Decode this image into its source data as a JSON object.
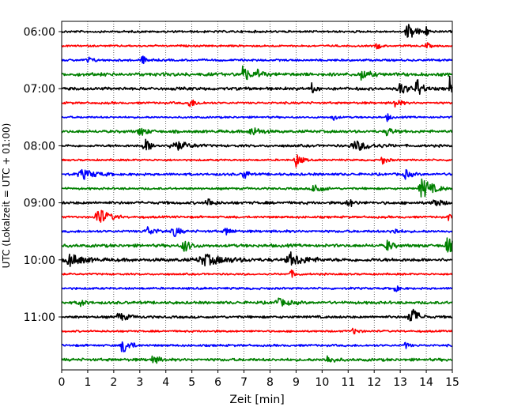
{
  "chart_data": {
    "type": "line",
    "title": "",
    "xlabel": "Zeit  [min]",
    "ylabel": "UTC (Lokalzeit = UTC + 01:00)",
    "xlim": [
      0,
      15
    ],
    "x_ticks": [
      "0",
      "1",
      "2",
      "3",
      "4",
      "5",
      "6",
      "7",
      "8",
      "9",
      "10",
      "11",
      "12",
      "13",
      "14",
      "15"
    ],
    "y_ticks": [
      "06:00",
      "07:00",
      "08:00",
      "09:00",
      "10:00",
      "11:00"
    ],
    "grid": "vertical dotted lines at each minute",
    "trace_interval_min": 15,
    "trace_colors": [
      "#000000",
      "#ff0000",
      "#0000ff",
      "#008000"
    ],
    "traces": [
      {
        "start": "06:00",
        "color": "#000000",
        "noise": 0.35,
        "events": [
          {
            "t": 13.3,
            "amp": 3.2,
            "dur": 0.5
          },
          {
            "t": 14.0,
            "amp": 1.5,
            "dur": 0.2
          }
        ]
      },
      {
        "start": "06:15",
        "color": "#ff0000",
        "noise": 0.3,
        "events": [
          {
            "t": 12.1,
            "amp": 1.4,
            "dur": 0.2
          },
          {
            "t": 14.0,
            "amp": 1.3,
            "dur": 0.2
          }
        ]
      },
      {
        "start": "06:30",
        "color": "#0000ff",
        "noise": 0.35,
        "events": [
          {
            "t": 1.0,
            "amp": 1.2,
            "dur": 0.3
          },
          {
            "t": 3.1,
            "amp": 1.5,
            "dur": 0.3
          }
        ]
      },
      {
        "start": "06:45",
        "color": "#008000",
        "noise": 0.55,
        "events": [
          {
            "t": 6.95,
            "amp": 4.0,
            "dur": 0.3
          },
          {
            "t": 7.5,
            "amp": 1.8,
            "dur": 0.3
          },
          {
            "t": 11.5,
            "amp": 2.0,
            "dur": 0.4
          }
        ]
      },
      {
        "start": "07:00",
        "color": "#000000",
        "noise": 0.5,
        "events": [
          {
            "t": 9.6,
            "amp": 2.0,
            "dur": 0.2
          },
          {
            "t": 13.0,
            "amp": 2.5,
            "dur": 0.4
          },
          {
            "t": 13.65,
            "amp": 4.2,
            "dur": 0.3
          },
          {
            "t": 14.9,
            "amp": 4.5,
            "dur": 0.1
          }
        ]
      },
      {
        "start": "07:15",
        "color": "#ff0000",
        "noise": 0.35,
        "events": [
          {
            "t": 4.9,
            "amp": 1.6,
            "dur": 0.4
          },
          {
            "t": 12.8,
            "amp": 1.8,
            "dur": 0.3
          }
        ]
      },
      {
        "start": "07:30",
        "color": "#0000ff",
        "noise": 0.3,
        "events": [
          {
            "t": 10.4,
            "amp": 1.6,
            "dur": 0.2
          },
          {
            "t": 12.5,
            "amp": 1.5,
            "dur": 0.2
          }
        ]
      },
      {
        "start": "07:45",
        "color": "#008000",
        "noise": 0.45,
        "events": [
          {
            "t": 3.0,
            "amp": 1.6,
            "dur": 0.4
          },
          {
            "t": 7.3,
            "amp": 1.8,
            "dur": 0.5
          },
          {
            "t": 12.5,
            "amp": 1.8,
            "dur": 0.3
          }
        ]
      },
      {
        "start": "08:00",
        "color": "#000000",
        "noise": 0.4,
        "events": [
          {
            "t": 3.2,
            "amp": 2.6,
            "dur": 0.4
          },
          {
            "t": 4.3,
            "amp": 2.0,
            "dur": 0.8
          },
          {
            "t": 11.3,
            "amp": 1.8,
            "dur": 1.0
          }
        ]
      },
      {
        "start": "08:15",
        "color": "#ff0000",
        "noise": 0.3,
        "events": [
          {
            "t": 9.0,
            "amp": 2.8,
            "dur": 0.3
          },
          {
            "t": 12.3,
            "amp": 1.6,
            "dur": 0.3
          }
        ]
      },
      {
        "start": "08:30",
        "color": "#0000ff",
        "noise": 0.4,
        "events": [
          {
            "t": 0.8,
            "amp": 1.8,
            "dur": 0.8
          },
          {
            "t": 7.0,
            "amp": 2.8,
            "dur": 0.2
          },
          {
            "t": 13.2,
            "amp": 1.8,
            "dur": 0.3
          }
        ]
      },
      {
        "start": "08:45",
        "color": "#008000",
        "noise": 0.35,
        "events": [
          {
            "t": 9.7,
            "amp": 2.4,
            "dur": 0.4
          },
          {
            "t": 13.85,
            "amp": 4.2,
            "dur": 0.6
          }
        ]
      },
      {
        "start": "09:00",
        "color": "#000000",
        "noise": 0.45,
        "events": [
          {
            "t": 5.6,
            "amp": 2.0,
            "dur": 0.3
          },
          {
            "t": 11.0,
            "amp": 1.8,
            "dur": 0.3
          },
          {
            "t": 14.3,
            "amp": 1.8,
            "dur": 0.4
          }
        ]
      },
      {
        "start": "09:15",
        "color": "#ff0000",
        "noise": 0.35,
        "events": [
          {
            "t": 1.4,
            "amp": 3.6,
            "dur": 0.6
          },
          {
            "t": 14.85,
            "amp": 1.5,
            "dur": 0.1
          }
        ]
      },
      {
        "start": "09:30",
        "color": "#0000ff",
        "noise": 0.4,
        "events": [
          {
            "t": 3.3,
            "amp": 1.6,
            "dur": 0.5
          },
          {
            "t": 4.3,
            "amp": 2.6,
            "dur": 0.3
          },
          {
            "t": 6.3,
            "amp": 1.6,
            "dur": 0.3
          },
          {
            "t": 12.7,
            "amp": 1.6,
            "dur": 0.3
          }
        ]
      },
      {
        "start": "09:45",
        "color": "#008000",
        "noise": 0.5,
        "events": [
          {
            "t": 4.7,
            "amp": 2.4,
            "dur": 0.4
          },
          {
            "t": 12.5,
            "amp": 2.2,
            "dur": 0.3
          },
          {
            "t": 14.8,
            "amp": 3.2,
            "dur": 0.4
          }
        ]
      },
      {
        "start": "10:00",
        "color": "#000000",
        "noise": 0.55,
        "events": [
          {
            "t": 0.3,
            "amp": 2.5,
            "dur": 0.7
          },
          {
            "t": 5.5,
            "amp": 2.0,
            "dur": 1.2
          },
          {
            "t": 8.8,
            "amp": 2.4,
            "dur": 0.8
          }
        ]
      },
      {
        "start": "10:15",
        "color": "#ff0000",
        "noise": 0.3,
        "events": [
          {
            "t": 8.8,
            "amp": 1.4,
            "dur": 0.3
          }
        ]
      },
      {
        "start": "10:30",
        "color": "#0000ff",
        "noise": 0.35,
        "events": [
          {
            "t": 12.8,
            "amp": 1.5,
            "dur": 0.2
          }
        ]
      },
      {
        "start": "10:45",
        "color": "#008000",
        "noise": 0.45,
        "events": [
          {
            "t": 0.7,
            "amp": 1.4,
            "dur": 0.3
          },
          {
            "t": 8.3,
            "amp": 1.5,
            "dur": 0.6
          }
        ]
      },
      {
        "start": "11:00",
        "color": "#000000",
        "noise": 0.4,
        "events": [
          {
            "t": 2.2,
            "amp": 1.6,
            "dur": 0.5
          },
          {
            "t": 13.4,
            "amp": 4.4,
            "dur": 0.4
          }
        ]
      },
      {
        "start": "11:15",
        "color": "#ff0000",
        "noise": 0.3,
        "events": [
          {
            "t": 11.2,
            "amp": 1.2,
            "dur": 0.3
          }
        ]
      },
      {
        "start": "11:30",
        "color": "#0000ff",
        "noise": 0.35,
        "events": [
          {
            "t": 2.35,
            "amp": 3.4,
            "dur": 0.4
          },
          {
            "t": 13.2,
            "amp": 1.4,
            "dur": 0.2
          }
        ]
      },
      {
        "start": "11:45",
        "color": "#008000",
        "noise": 0.45,
        "events": [
          {
            "t": 3.5,
            "amp": 1.5,
            "dur": 0.4
          },
          {
            "t": 10.2,
            "amp": 1.5,
            "dur": 0.4
          }
        ]
      }
    ]
  }
}
